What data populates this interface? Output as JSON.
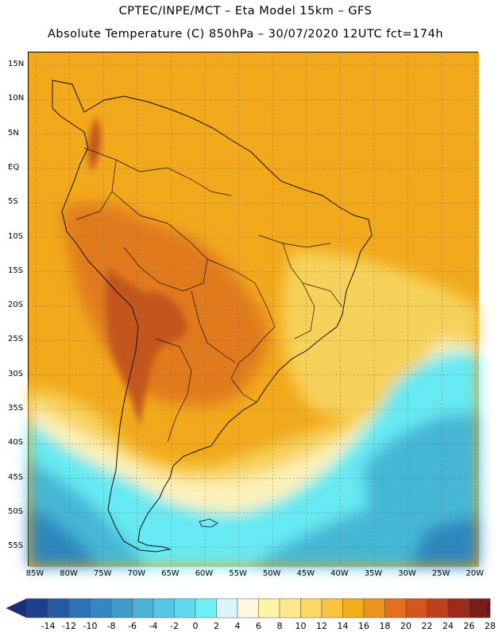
{
  "header": {
    "line1": "CPTEC/INPE/MCT –   Eta Model 15km – GFS",
    "line2": "Absolute Temperature (C) 850hPa – 30/07/2020 12UTC fct=174h"
  },
  "map": {
    "lat_labels": [
      "15N",
      "10N",
      "5N",
      "EQ",
      "5S",
      "10S",
      "15S",
      "20S",
      "25S",
      "30S",
      "35S",
      "40S",
      "45S",
      "50S",
      "55S"
    ],
    "lon_labels": [
      "85W",
      "80W",
      "75W",
      "70W",
      "65W",
      "60W",
      "55W",
      "50W",
      "45W",
      "40W",
      "35W",
      "30W",
      "25W",
      "20W"
    ],
    "grid": "dotted",
    "colors": {
      "warm_base": "#f2a91c",
      "hot": "#e07a1f",
      "very_hot": "#c4561c",
      "mild": "#f7d25a",
      "cool": "#fdf1b8",
      "cold": "#66e9f2",
      "colder": "#45b7d6",
      "coldest": "#2f86bd"
    }
  },
  "colorbar": {
    "labels": [
      "-14",
      "-12",
      "-10",
      "-8",
      "-6",
      "-4",
      "-2",
      "0",
      "2",
      "4",
      "6",
      "8",
      "10",
      "12",
      "14",
      "16",
      "18",
      "20",
      "22",
      "24",
      "26",
      "28"
    ],
    "colors": [
      "#1f3f8c",
      "#245aa3",
      "#2c72b4",
      "#3587c2",
      "#3d9ccc",
      "#47b1d6",
      "#55c6e3",
      "#5fd9ec",
      "#6ef0f5",
      "#d8f6fb",
      "#fff7df",
      "#fff3a8",
      "#fde98a",
      "#fbd866",
      "#f6c441",
      "#f2ad1c",
      "#ec931e",
      "#e2711f",
      "#d4551e",
      "#bf3f1d",
      "#9e2a1a",
      "#7a1c17"
    ],
    "low_color": "#1a2f7a",
    "high_color": "#6a0f2a"
  }
}
